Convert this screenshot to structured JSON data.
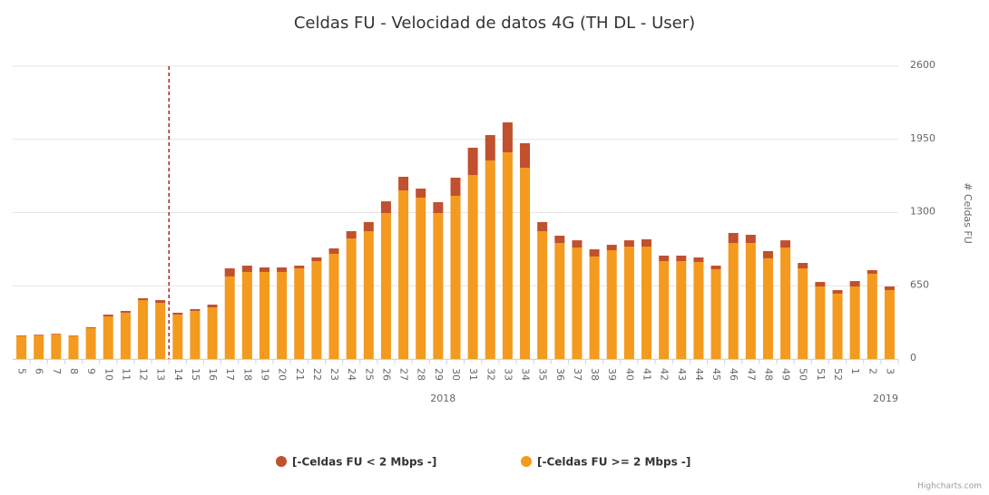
{
  "chart_data": {
    "type": "stacked_bar",
    "title": "Celdas FU - Velocidad de datos 4G (TH DL - User)",
    "y_axis_title": "# Celdas FU",
    "categories": [
      "5",
      "6",
      "7",
      "8",
      "9",
      "10",
      "11",
      "12",
      "13",
      "14",
      "15",
      "16",
      "17",
      "18",
      "19",
      "20",
      "21",
      "22",
      "23",
      "24",
      "25",
      "26",
      "27",
      "28",
      "29",
      "30",
      "31",
      "32",
      "33",
      "34",
      "35",
      "36",
      "37",
      "38",
      "39",
      "40",
      "41",
      "42",
      "43",
      "44",
      "45",
      "46",
      "47",
      "48",
      "49",
      "50",
      "51",
      "52",
      "1",
      "2",
      "3"
    ],
    "x_group_labels": [
      "2018",
      "2019"
    ],
    "series": [
      {
        "name": "[-Celdas FU < 2 Mbps -]",
        "color": "#c1502e",
        "values": [
          5,
          5,
          5,
          5,
          8,
          16,
          16,
          16,
          24,
          17,
          16,
          24,
          72,
          56,
          40,
          40,
          24,
          33,
          48,
          65,
          81,
          105,
          121,
          80,
          97,
          161,
          242,
          225,
          266,
          218,
          81,
          65,
          64,
          64,
          48,
          56,
          65,
          49,
          49,
          41,
          32,
          89,
          73,
          64,
          64,
          48,
          40,
          32,
          48,
          32,
          32
        ]
      },
      {
        "name": "[-Celdas FU >= 2 Mbps -]",
        "color": "#f39a1f",
        "values": [
          205,
          212,
          220,
          204,
          274,
          378,
          411,
          523,
          499,
          394,
          427,
          459,
          733,
          773,
          773,
          773,
          805,
          869,
          934,
          1070,
          1135,
          1295,
          1497,
          1433,
          1296,
          1449,
          1634,
          1763,
          1835,
          1698,
          1135,
          1030,
          990,
          910,
          966,
          998,
          998,
          869,
          869,
          861,
          797,
          1030,
          1030,
          894,
          990,
          805,
          644,
          580,
          644,
          757,
          612
        ]
      }
    ],
    "ylim": [
      0,
      2600
    ],
    "yticks": [
      0,
      650,
      1300,
      1950,
      2600
    ],
    "grid": true,
    "legend": "bottom",
    "credits": "Highcharts.com"
  }
}
